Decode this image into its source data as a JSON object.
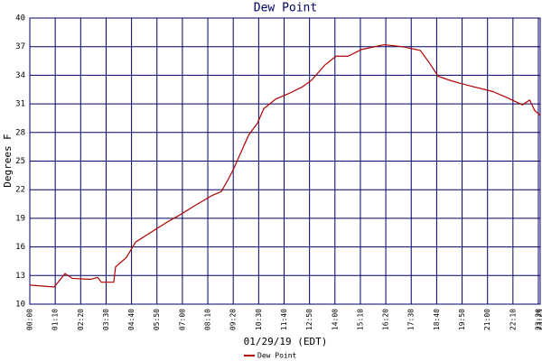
{
  "chart_data": {
    "type": "line",
    "title": "Dew Point",
    "x_label": "01/29/19 (EDT)",
    "y_label": "Degrees F",
    "x": [
      0,
      67,
      97,
      117,
      167,
      187,
      197,
      231,
      236,
      266,
      291,
      336,
      378,
      415,
      453,
      502,
      527,
      545,
      560,
      580,
      602,
      627,
      644,
      677,
      714,
      751,
      776,
      813,
      843,
      876,
      913,
      975,
      1025,
      1075,
      1100,
      1124,
      1162,
      1211,
      1274,
      1311,
      1356,
      1376,
      1390,
      1405
    ],
    "series": [
      {
        "name": "Dew Point",
        "color": "#b00000",
        "values": [
          12.0,
          11.8,
          13.2,
          12.7,
          12.6,
          12.8,
          12.3,
          12.3,
          13.9,
          14.9,
          16.5,
          17.6,
          18.6,
          19.4,
          20.3,
          21.4,
          21.8,
          23.0,
          24.1,
          25.8,
          27.7,
          29.0,
          30.5,
          31.5,
          32.1,
          32.8,
          33.5,
          35.1,
          36.0,
          36.0,
          36.7,
          37.2,
          37.0,
          36.6,
          35.3,
          33.9,
          33.4,
          32.9,
          32.3,
          31.7,
          30.9,
          31.4,
          30.3,
          29.8
        ]
      }
    ],
    "xlim": [
      0,
      1405
    ],
    "xticks": [
      {
        "value": 0,
        "label": "00:00"
      },
      {
        "value": 70,
        "label": "01:10"
      },
      {
        "value": 140,
        "label": "02:20"
      },
      {
        "value": 210,
        "label": "03:30"
      },
      {
        "value": 280,
        "label": "04:40"
      },
      {
        "value": 350,
        "label": "05:50"
      },
      {
        "value": 420,
        "label": "07:00"
      },
      {
        "value": 490,
        "label": "08:10"
      },
      {
        "value": 560,
        "label": "09:20"
      },
      {
        "value": 630,
        "label": "10:30"
      },
      {
        "value": 700,
        "label": "11:40"
      },
      {
        "value": 770,
        "label": "12:50"
      },
      {
        "value": 840,
        "label": "14:00"
      },
      {
        "value": 910,
        "label": "15:10"
      },
      {
        "value": 980,
        "label": "16:20"
      },
      {
        "value": 1050,
        "label": "17:30"
      },
      {
        "value": 1120,
        "label": "18:40"
      },
      {
        "value": 1190,
        "label": "19:50"
      },
      {
        "value": 1260,
        "label": "21:00"
      },
      {
        "value": 1330,
        "label": "22:10"
      },
      {
        "value": 1400,
        "label": "23:20"
      },
      {
        "value": 1405,
        "label": "23:25"
      }
    ],
    "ylim": [
      10,
      40
    ],
    "yticks": [
      10,
      13,
      16,
      19,
      22,
      25,
      28,
      31,
      34,
      37,
      40
    ],
    "grid": true,
    "grid_color": "#000066"
  }
}
